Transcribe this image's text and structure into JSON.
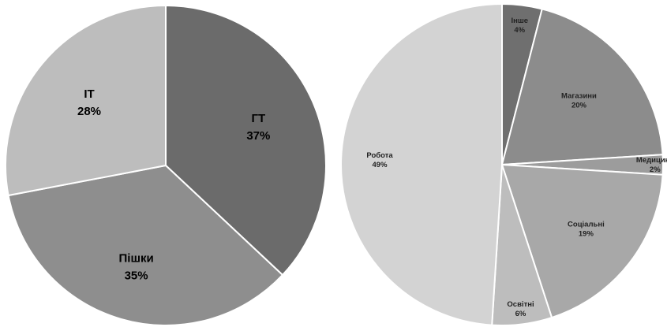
{
  "chart_data": [
    {
      "type": "pie",
      "slices": [
        {
          "label": "ГТ",
          "value": 37,
          "value_label": "37%",
          "color": "#6b6b6b"
        },
        {
          "label": "Пішки",
          "value": 35,
          "value_label": "35%",
          "color": "#8e8e8e"
        },
        {
          "label": "ІТ",
          "value": 28,
          "value_label": "28%",
          "color": "#bdbdbd"
        }
      ]
    },
    {
      "type": "pie",
      "slices": [
        {
          "label": "Інше",
          "value": 4,
          "value_label": "4%",
          "color": "#6f6f6f"
        },
        {
          "label": "Магазини",
          "value": 20,
          "value_label": "20%",
          "color": "#8c8c8c"
        },
        {
          "label": "Медицина",
          "value": 2,
          "value_label": "2%",
          "color": "#9c9c9c"
        },
        {
          "label": "Соціальні",
          "value": 19,
          "value_label": "19%",
          "color": "#a8a8a8"
        },
        {
          "label": "Освітні",
          "value": 6,
          "value_label": "6%",
          "color": "#bdbdbd"
        },
        {
          "label": "Робота",
          "value": 49,
          "value_label": "49%",
          "color": "#d3d3d3"
        }
      ]
    }
  ]
}
